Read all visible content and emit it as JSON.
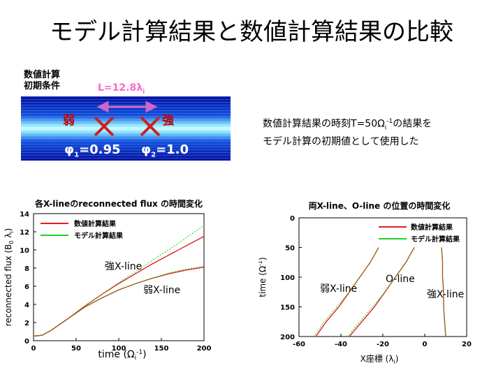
{
  "page": {
    "title": "モデル計算結果と数値計算結果の比較",
    "init_label_1": "数値計算",
    "init_label_2": "初期条件",
    "length_label": "L=12.8λ",
    "length_sub": "i",
    "weak_label": "弱",
    "strong_label": "強",
    "phi1_label": "φ",
    "phi1_sub": "1",
    "phi1_value": "=0.95",
    "phi2_label": "φ",
    "phi2_sub": "2",
    "phi2_value": "=1.0",
    "note_line1_a": "数値計算結果の時刻T=50Ω",
    "note_line1_sub": "i",
    "note_line1_sup": "-1",
    "note_line1_b": "の結果を",
    "note_line2": "モデル計算の初期値として使用した"
  },
  "colors": {
    "band_dark": "#0010a0",
    "band_light": "#b0f0ff",
    "arrow": "#cc66cc",
    "cross": "#cc2020",
    "numeric": "#e02020",
    "model": "#20d020"
  },
  "chart_data": [
    {
      "type": "line",
      "title": "各X-lineのreconnected flux の時間変化",
      "xlabel": "time (Ωi-1)",
      "ylabel": "reconnected flux (B0 λi)",
      "xlim": [
        0,
        200
      ],
      "ylim": [
        0,
        14
      ],
      "xticks": [
        "0",
        "50",
        "100",
        "150",
        "200"
      ],
      "yticks": [
        "0",
        "2",
        "4",
        "6",
        "8",
        "10",
        "12",
        "14"
      ],
      "legend": [
        "数値計算結果",
        "モデル計算結果"
      ],
      "legend_position": "top-left",
      "annotations": [
        "強X-line",
        "弱X-line"
      ],
      "series": [
        {
          "name": "数値計算結果",
          "line": "strong",
          "x": [
            0,
            10,
            20,
            40,
            60,
            80,
            100,
            120,
            140,
            160,
            180,
            200
          ],
          "y": [
            0.5,
            0.6,
            1.1,
            2.4,
            3.8,
            5.1,
            6.3,
            7.4,
            8.5,
            9.5,
            10.5,
            11.5
          ]
        },
        {
          "name": "モデル計算結果",
          "line": "strong",
          "x": [
            0,
            10,
            20,
            40,
            60,
            80,
            100,
            120,
            140,
            160,
            180,
            200
          ],
          "y": [
            0.5,
            0.6,
            1.1,
            2.4,
            3.8,
            5.1,
            6.4,
            7.6,
            8.9,
            10.1,
            11.4,
            12.7
          ]
        },
        {
          "name": "数値計算結果",
          "line": "weak",
          "x": [
            0,
            10,
            20,
            40,
            60,
            80,
            100,
            120,
            140,
            160,
            180,
            200
          ],
          "y": [
            0.5,
            0.6,
            1.1,
            2.4,
            3.7,
            4.7,
            5.6,
            6.3,
            6.9,
            7.4,
            7.8,
            8.1
          ]
        },
        {
          "name": "モデル計算結果",
          "line": "weak",
          "x": [
            0,
            10,
            20,
            40,
            60,
            80,
            100,
            120,
            140,
            160,
            180,
            200
          ],
          "y": [
            0.5,
            0.6,
            1.1,
            2.4,
            3.7,
            4.7,
            5.6,
            6.3,
            6.9,
            7.5,
            7.9,
            8.2
          ]
        }
      ]
    },
    {
      "type": "line",
      "title": "両X-line、O-line の位置の時間変化",
      "xlabel": "X座標 (λi)",
      "ylabel": "time (Ω-1)",
      "xlim": [
        -60,
        20
      ],
      "ylim": [
        0,
        200
      ],
      "y_inverted": true,
      "xticks": [
        "-60",
        "-40",
        "-20",
        "0",
        "20"
      ],
      "yticks": [
        "0",
        "50",
        "100",
        "150",
        "200"
      ],
      "legend": [
        "数値計算結果",
        "モデル計算結果"
      ],
      "legend_position": "top-right",
      "annotations": [
        "弱X-line",
        "O-line",
        "強X-line"
      ],
      "series": [
        {
          "name": "数値計算結果",
          "line": "weak X-line",
          "x": [
            -52,
            -47,
            -41,
            -36,
            -31,
            -26,
            -22
          ],
          "y": [
            200,
            175,
            150,
            125,
            100,
            75,
            50
          ]
        },
        {
          "name": "モデル計算結果",
          "line": "weak X-line",
          "x": [
            -53,
            -48,
            -42,
            -36,
            -31,
            -26,
            -22
          ],
          "y": [
            200,
            175,
            150,
            125,
            100,
            75,
            50
          ]
        },
        {
          "name": "数値計算結果",
          "line": "O-line",
          "x": [
            -36,
            -30,
            -24,
            -19,
            -14,
            -9,
            -5
          ],
          "y": [
            200,
            175,
            150,
            125,
            100,
            75,
            50
          ]
        },
        {
          "name": "モデル計算結果",
          "line": "O-line",
          "x": [
            -37,
            -31,
            -25,
            -19,
            -14,
            -9,
            -5
          ],
          "y": [
            200,
            175,
            150,
            125,
            100,
            75,
            50
          ]
        },
        {
          "name": "数値計算結果",
          "line": "strong X-line",
          "x": [
            10,
            9.5,
            9,
            9,
            8.5,
            8.5,
            8
          ],
          "y": [
            200,
            175,
            150,
            125,
            100,
            75,
            50
          ]
        },
        {
          "name": "モデル計算結果",
          "line": "strong X-line",
          "x": [
            10,
            9.5,
            9,
            9,
            8.5,
            8.5,
            8
          ],
          "y": [
            200,
            175,
            150,
            125,
            100,
            75,
            50
          ]
        }
      ]
    }
  ]
}
